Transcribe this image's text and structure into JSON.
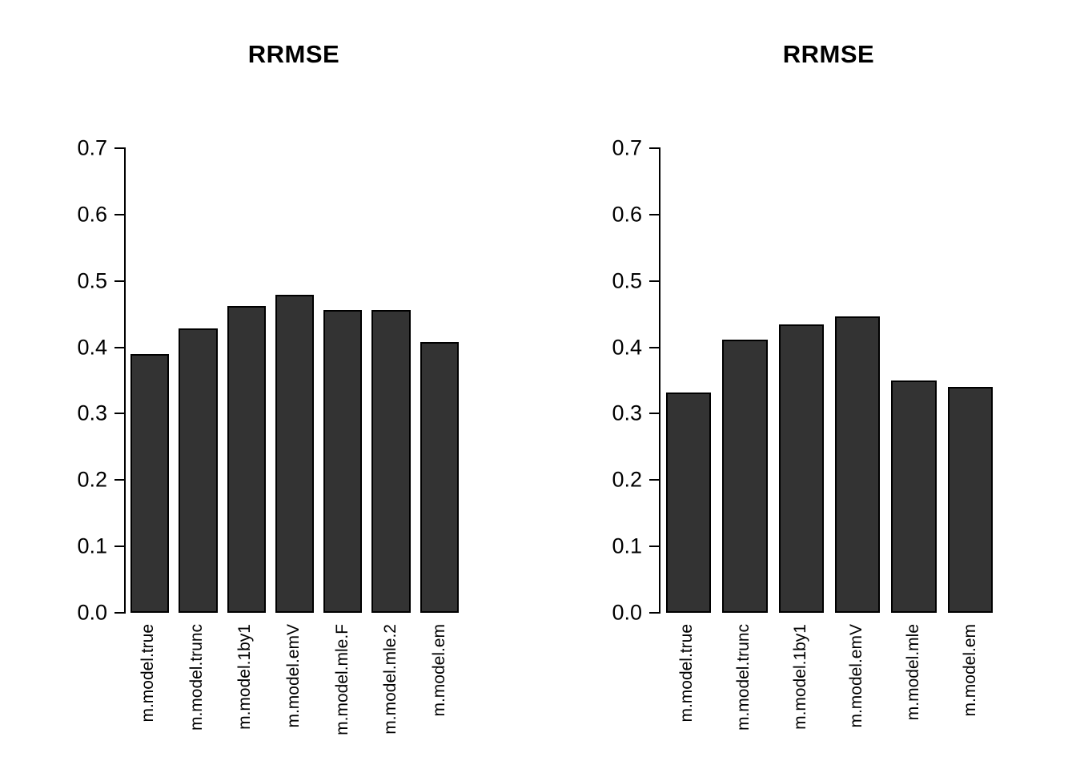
{
  "page": {
    "background_color": "#ffffff",
    "text_color": "#000000"
  },
  "chart_data": [
    {
      "type": "bar",
      "title": "RRMSE",
      "xlabel": "",
      "ylabel": "",
      "categories": [
        "m.model.true",
        "m.model.trunc",
        "m.model.1by1",
        "m.model.emV",
        "m.model.mle.F",
        "m.model.mle.2",
        "m.model.em"
      ],
      "values": [
        0.39,
        0.428,
        0.462,
        0.479,
        0.456,
        0.456,
        0.408
      ],
      "ylim": [
        0,
        0.7
      ],
      "yticks": [
        0,
        0.1,
        0.2,
        0.3,
        0.4,
        0.5,
        0.6,
        0.7
      ],
      "ytick_labels": [
        "0.0",
        "0.1",
        "0.2",
        "0.3",
        "0.4",
        "0.5",
        "0.6",
        "0.7"
      ],
      "grid": false,
      "legend": "none",
      "bar_color": "#333333",
      "bar_border_color": "#000000"
    },
    {
      "type": "bar",
      "title": "RRMSE",
      "xlabel": "",
      "ylabel": "",
      "categories": [
        "m.model.true",
        "m.model.trunc",
        "m.model.1by1",
        "m.model.emV",
        "m.model.mle",
        "m.model.em"
      ],
      "values": [
        0.332,
        0.411,
        0.435,
        0.446,
        0.35,
        0.34
      ],
      "ylim": [
        0,
        0.7
      ],
      "yticks": [
        0,
        0.1,
        0.2,
        0.3,
        0.4,
        0.5,
        0.6,
        0.7
      ],
      "ytick_labels": [
        "0.0",
        "0.1",
        "0.2",
        "0.3",
        "0.4",
        "0.5",
        "0.6",
        "0.7"
      ],
      "grid": false,
      "legend": "none",
      "bar_color": "#333333",
      "bar_border_color": "#000000"
    }
  ]
}
